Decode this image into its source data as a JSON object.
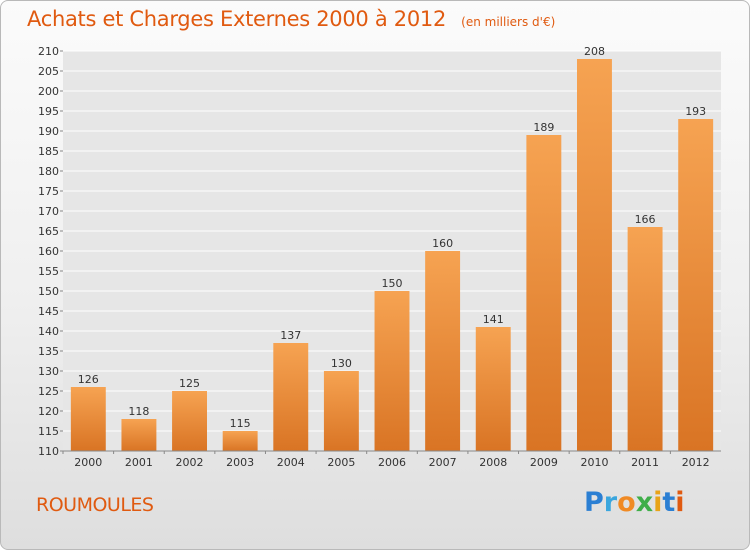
{
  "header": {
    "title": "Achats et Charges Externes 2000 à 2012",
    "unit": "(en milliers d'€)"
  },
  "footer": {
    "commune": "ROUMOULES",
    "logo_text": "Proxiti"
  },
  "colors": {
    "accent": "#e05a10",
    "bar_light": "#f6a352",
    "bar_dark": "#d97424",
    "grid": "#ffffff"
  },
  "chart_data": {
    "type": "bar",
    "categories": [
      "2000",
      "2001",
      "2002",
      "2003",
      "2004",
      "2005",
      "2006",
      "2007",
      "2008",
      "2009",
      "2010",
      "2011",
      "2012"
    ],
    "values": [
      126,
      118,
      125,
      115,
      137,
      130,
      150,
      160,
      141,
      189,
      208,
      166,
      193
    ],
    "data_labels": true,
    "title": "Achats et Charges Externes 2000 à 2012",
    "subtitle": "(en milliers d'€)",
    "xlabel": "",
    "ylabel": "",
    "ylim": [
      110,
      210
    ],
    "ytick_step": 5,
    "grid": true,
    "legend": "none"
  }
}
